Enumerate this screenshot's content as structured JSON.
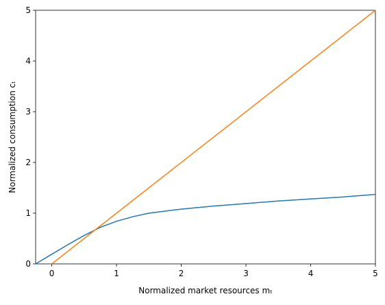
{
  "chart_data": {
    "type": "line",
    "xlabel": "Normalized market resources mₜ",
    "ylabel": "Normalized consumption cₜ",
    "xlim": [
      -0.25,
      5
    ],
    "ylim": [
      0,
      5
    ],
    "xticks": [
      0,
      1,
      2,
      3,
      4,
      5
    ],
    "yticks": [
      0,
      1,
      2,
      3,
      4,
      5
    ],
    "grid": false,
    "series": [
      {
        "color": "#1f77b4",
        "x": [
          -0.25,
          0,
          0.25,
          0.5,
          0.75,
          1,
          1.25,
          1.5,
          2,
          2.5,
          3,
          3.5,
          4,
          4.5,
          5
        ],
        "values": [
          0,
          0.19,
          0.38,
          0.56,
          0.72,
          0.84,
          0.93,
          1.0,
          1.08,
          1.14,
          1.19,
          1.24,
          1.28,
          1.32,
          1.37
        ]
      },
      {
        "color": "#ff7f0e",
        "x": [
          0,
          5
        ],
        "values": [
          0,
          5
        ]
      }
    ]
  }
}
